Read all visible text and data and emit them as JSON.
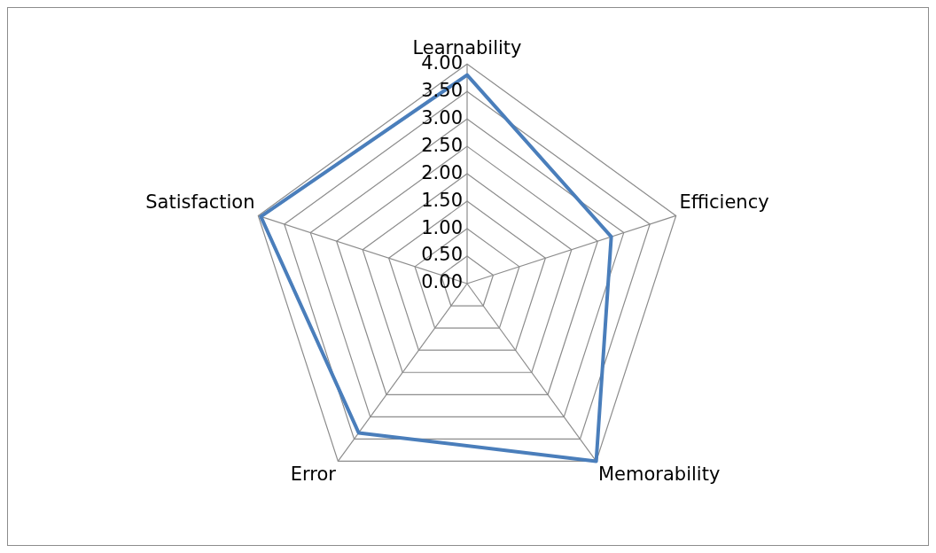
{
  "chart_data": {
    "type": "radar",
    "categories": [
      "Learnability",
      "Efficiency",
      "Memorability",
      "Error",
      "Satisfaction"
    ],
    "series": [
      {
        "color": "#4a7ebb",
        "values": [
          3.8,
          2.76,
          4.0,
          3.36,
          3.95
        ]
      }
    ],
    "ylim": [
      0,
      4
    ],
    "yticks": [
      {
        "value": 0,
        "label": "0.00"
      },
      {
        "value": 0.5,
        "label": "0.50"
      },
      {
        "value": 1,
        "label": "1.00"
      },
      {
        "value": 1.5,
        "label": "1.50"
      },
      {
        "value": 2,
        "label": "2.00"
      },
      {
        "value": 2.5,
        "label": "2.50"
      },
      {
        "value": 3,
        "label": "3.00"
      },
      {
        "value": 3.5,
        "label": "3.50"
      },
      {
        "value": 4,
        "label": "4.00"
      }
    ],
    "grid": true,
    "legend": false,
    "marker": "none",
    "line_style": "solid"
  }
}
